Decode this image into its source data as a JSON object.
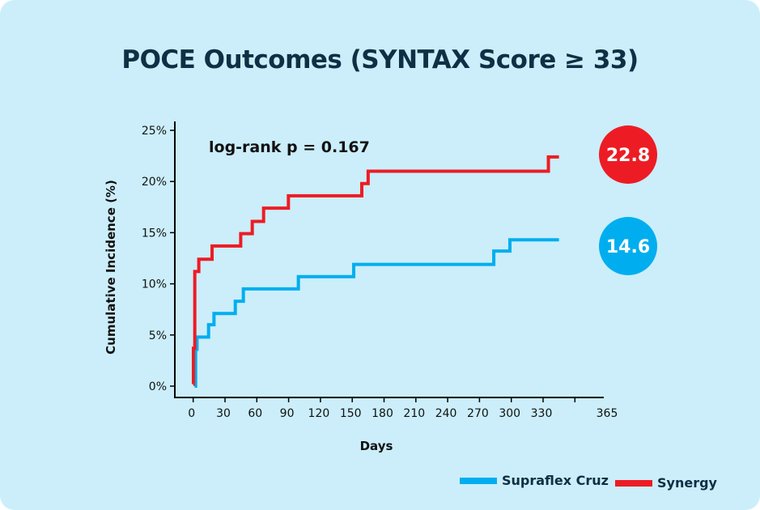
{
  "chart_data": {
    "type": "line",
    "title": "POCE Outcomes (SYNTAX Score ≥ 33)",
    "xlabel": "Days",
    "ylabel": "Cumulative Incidence (%)",
    "xlim": [
      0,
      365
    ],
    "ylim": [
      0,
      25
    ],
    "x_ticks": [
      "0",
      "30",
      "60",
      "90",
      "120",
      "150",
      "180",
      "210",
      "240",
      "270",
      "300",
      "330",
      "365"
    ],
    "y_ticks": [
      "0%",
      "5%",
      "10%",
      "15%",
      "20%",
      "25%"
    ],
    "annotation": "log-rank p = 0.167",
    "legend_position": "bottom-right",
    "series": [
      {
        "name": "Supraflex Cruz",
        "color": "#00aeef",
        "final_label": "14.6",
        "steps": [
          [
            1.3,
            0
          ],
          [
            2.3,
            3.6
          ],
          [
            3.6,
            4.8
          ],
          [
            14.5,
            6.0
          ],
          [
            19.6,
            7.1
          ],
          [
            39.7,
            8.3
          ],
          [
            47.3,
            9.5
          ],
          [
            99.2,
            10.7
          ],
          [
            151.4,
            11.9
          ],
          [
            283.5,
            13.2
          ],
          [
            298.7,
            14.3
          ],
          [
            345,
            14.3
          ]
        ]
      },
      {
        "name": "Synergy",
        "color": "#ed1c24",
        "final_label": "22.8",
        "steps": [
          [
            0,
            0.2
          ],
          [
            0.2,
            3.7
          ],
          [
            1.5,
            11.2
          ],
          [
            5.3,
            12.4
          ],
          [
            17.8,
            13.7
          ],
          [
            44.8,
            14.9
          ],
          [
            55.7,
            16.1
          ],
          [
            66.4,
            17.4
          ],
          [
            89.8,
            18.6
          ],
          [
            159,
            19.8
          ],
          [
            165,
            21.0
          ],
          [
            335,
            22.4
          ],
          [
            345,
            22.4
          ]
        ]
      }
    ]
  }
}
